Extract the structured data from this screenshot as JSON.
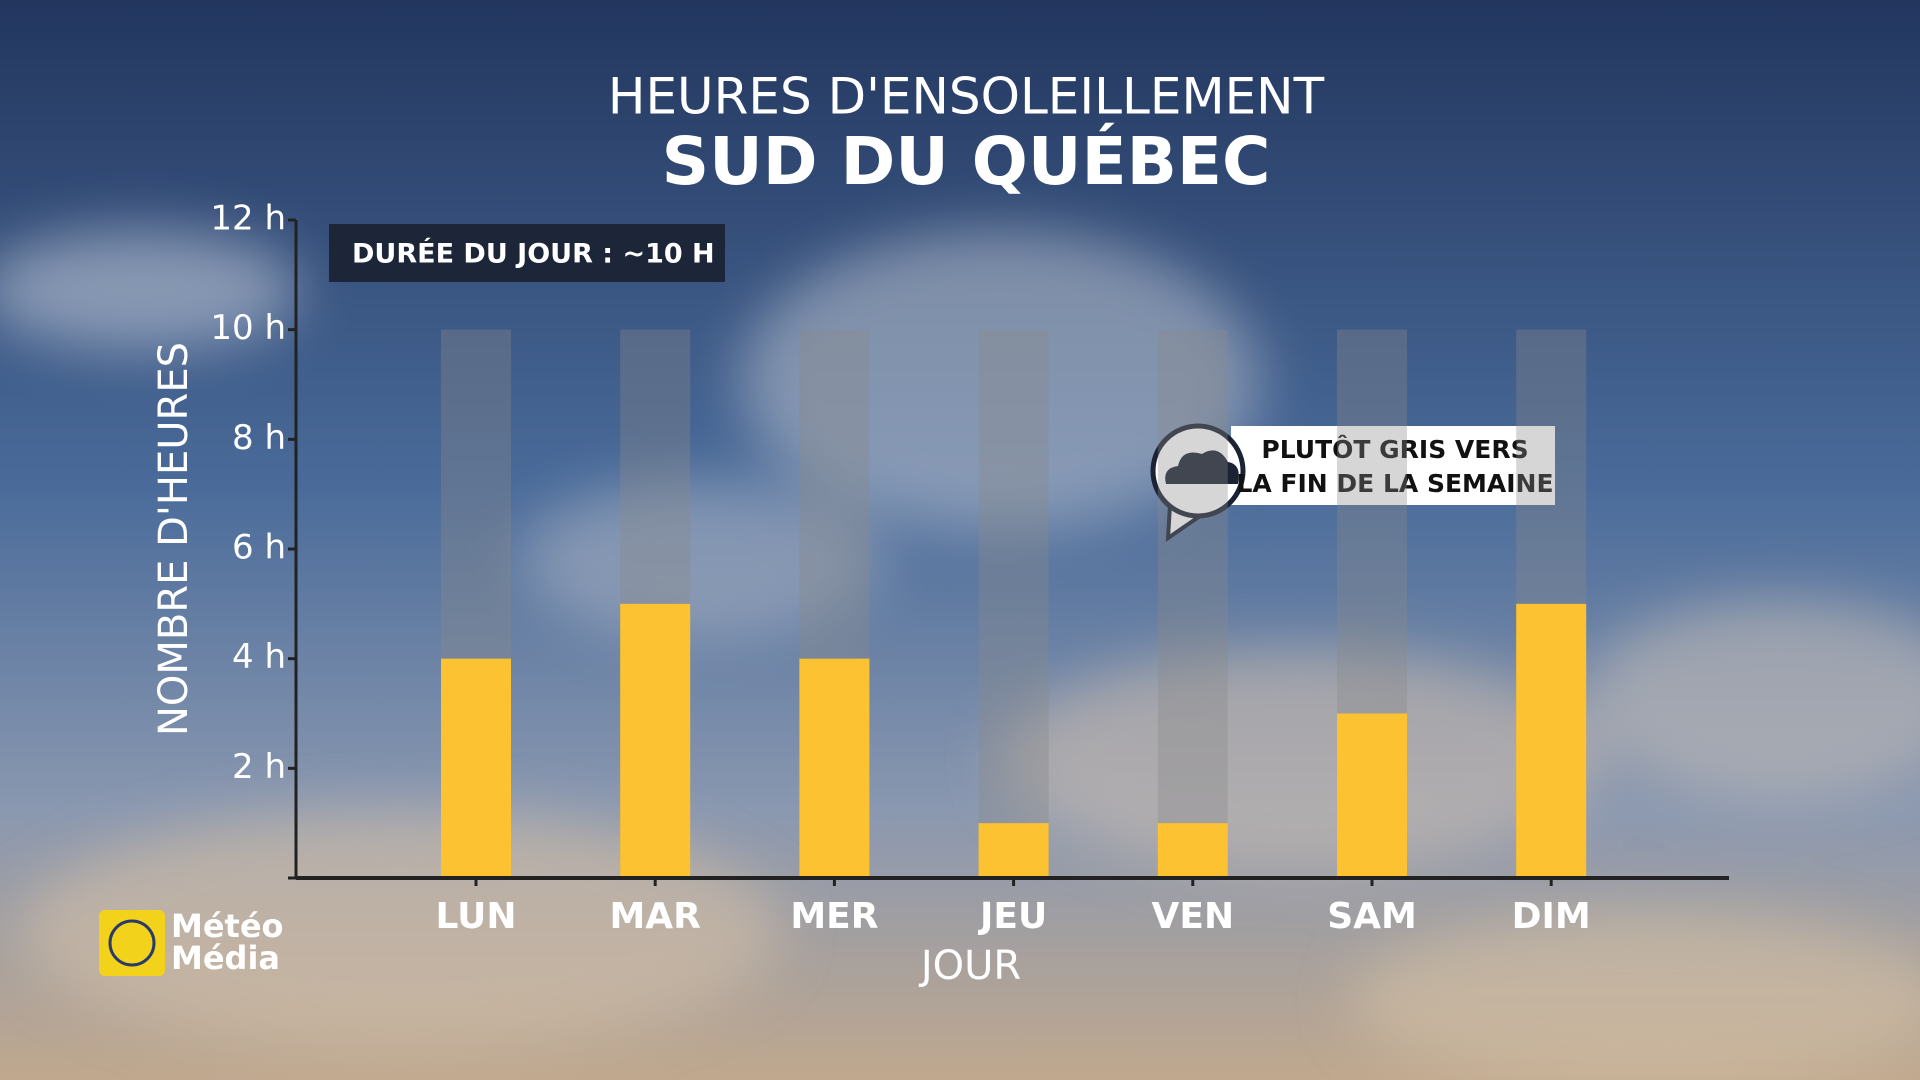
{
  "chart_data": {
    "type": "bar",
    "title": "HEURES D'ENSOLEILLEMENT",
    "subtitle": "SUD DU QUÉBEC",
    "y_label": "NOMBRE D'HEURES",
    "x_label": "JOUR",
    "categories": [
      "LUN",
      "MAR",
      "MER",
      "JEU",
      "VEN",
      "SAM",
      "DIM"
    ],
    "values": [
      4,
      5,
      4,
      1,
      1,
      3,
      5
    ],
    "color": "#fdc232",
    "day_length": 10,
    "day_length_color": "#8a8a8a",
    "ylim": [
      0,
      12
    ],
    "yticks": [
      0,
      {
        "value": 2,
        "label": "2 h"
      },
      {
        "value": 4,
        "label": "4 h"
      },
      {
        "value": 6,
        "label": "6 h"
      },
      {
        "value": 8,
        "label": "8 h"
      },
      {
        "value": 10,
        "label": "10 h"
      },
      {
        "value": 12,
        "label": "12 h"
      }
    ],
    "annotation": "DURÉE DU JOUR : ~10 H",
    "callout": [
      "PLUTÔT GRIS VERS",
      "LA FIN DE LA SEMAINE"
    ],
    "logo": [
      "Météo",
      "Média"
    ]
  }
}
